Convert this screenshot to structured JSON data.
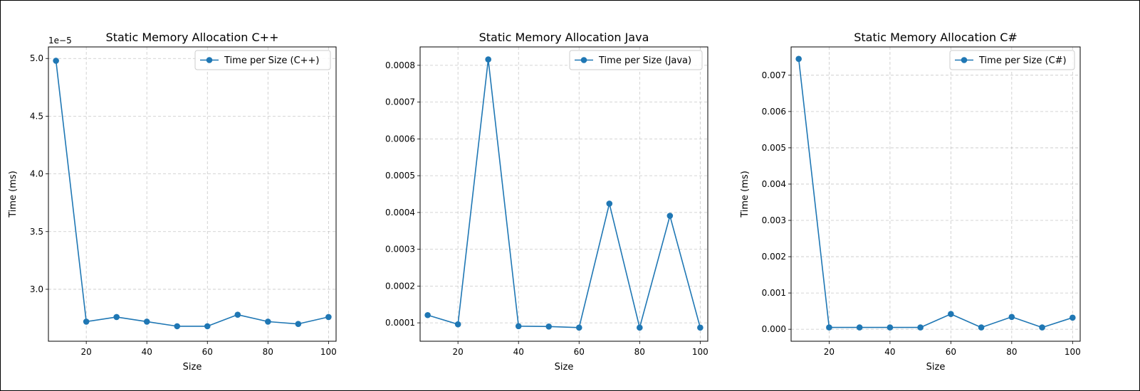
{
  "line_color": "#1f77b4",
  "chart_data": [
    {
      "type": "line",
      "title": "Static Memory Allocation C++",
      "xlabel": "Size",
      "ylabel": "Time (ms)",
      "offset_text": "1e−5",
      "grid": true,
      "grid_style": "dashed",
      "legend_placement": "upper right",
      "x_ticks": [
        "20",
        "40",
        "60",
        "80",
        "100"
      ],
      "y_ticks": [
        "3.0",
        "3.5",
        "4.0",
        "4.5",
        "5.0"
      ],
      "xlim": [
        7.5,
        102.5
      ],
      "ylim": [
        2.55e-05,
        5.1e-05
      ],
      "series": [
        {
          "name": "Time per Size (C++)",
          "x": [
            10,
            20,
            30,
            40,
            50,
            60,
            70,
            80,
            90,
            100
          ],
          "y": [
            4.98e-05,
            2.72e-05,
            2.76e-05,
            2.72e-05,
            2.68e-05,
            2.68e-05,
            2.78e-05,
            2.72e-05,
            2.7e-05,
            2.76e-05
          ]
        }
      ]
    },
    {
      "type": "line",
      "title": "Static Memory Allocation Java",
      "xlabel": "Size",
      "ylabel": "",
      "offset_text": "",
      "grid": true,
      "grid_style": "dashed",
      "legend_placement": "upper right",
      "x_ticks": [
        "20",
        "40",
        "60",
        "80",
        "100"
      ],
      "y_ticks": [
        "0.0001",
        "0.0002",
        "0.0003",
        "0.0004",
        "0.0005",
        "0.0006",
        "0.0007",
        "0.0008"
      ],
      "xlim": [
        7.5,
        102.5
      ],
      "ylim": [
        5e-05,
        0.00085
      ],
      "series": [
        {
          "name": "Time per Size (Java)",
          "x": [
            10,
            20,
            30,
            40,
            50,
            60,
            70,
            80,
            90,
            100
          ],
          "y": [
            0.000121,
            9.6e-05,
            0.000816,
            9.1e-05,
            9e-05,
            8.7e-05,
            0.000424,
            8.7e-05,
            0.000391,
            8.7e-05
          ]
        }
      ]
    },
    {
      "type": "line",
      "title": "Static Memory Allocation C#",
      "xlabel": "Size",
      "ylabel": "Time (ms)",
      "offset_text": "",
      "grid": true,
      "grid_style": "dashed",
      "legend_placement": "upper right",
      "x_ticks": [
        "20",
        "40",
        "60",
        "80",
        "100"
      ],
      "y_ticks": [
        "0.000",
        "0.001",
        "0.002",
        "0.003",
        "0.004",
        "0.005",
        "0.006",
        "0.007"
      ],
      "xlim": [
        7.5,
        102.5
      ],
      "ylim": [
        -0.00033,
        0.00778
      ],
      "series": [
        {
          "name": "Time per Size (C#)",
          "x": [
            10,
            20,
            30,
            40,
            50,
            60,
            70,
            80,
            90,
            100
          ],
          "y": [
            0.00745,
            5e-05,
            5e-05,
            5e-05,
            5e-05,
            0.00042,
            5e-05,
            0.00034,
            5e-05,
            0.00032
          ]
        }
      ]
    }
  ]
}
